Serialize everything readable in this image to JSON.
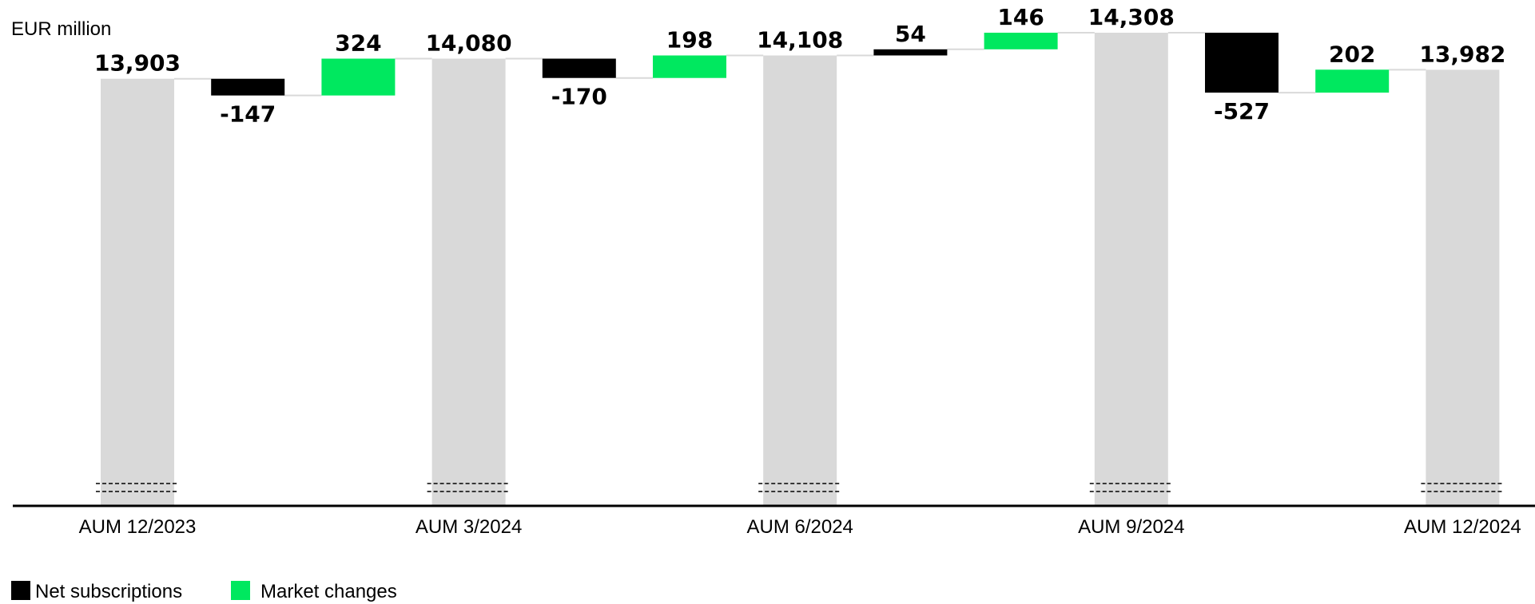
{
  "chart_data": {
    "type": "bar",
    "subtype": "waterfall",
    "unit_label": "EUR million",
    "axis_break": true,
    "grid": false,
    "legend_position": "bottom-left",
    "colors": {
      "total": "#d9d9d9",
      "net_subscriptions": "#000000",
      "market_changes": "#00e85f",
      "connector": "#d9d9d9",
      "axis": "#000000"
    },
    "legend": [
      {
        "key": "net_subscriptions",
        "label": "Net subscriptions"
      },
      {
        "key": "market_changes",
        "label": "Market changes"
      }
    ],
    "bars": [
      {
        "kind": "total",
        "category": "AUM 12/2023",
        "value": 13903,
        "label": "13,903"
      },
      {
        "kind": "net_subscriptions",
        "category": "",
        "value": -147,
        "label": "-147"
      },
      {
        "kind": "market_changes",
        "category": "",
        "value": 324,
        "label": "324"
      },
      {
        "kind": "total",
        "category": "AUM 3/2024",
        "value": 14080,
        "label": "14,080"
      },
      {
        "kind": "net_subscriptions",
        "category": "",
        "value": -170,
        "label": "-170"
      },
      {
        "kind": "market_changes",
        "category": "",
        "value": 198,
        "label": "198"
      },
      {
        "kind": "total",
        "category": "AUM 6/2024",
        "value": 14108,
        "label": "14,108"
      },
      {
        "kind": "net_subscriptions",
        "category": "",
        "value": 54,
        "label": "54"
      },
      {
        "kind": "market_changes",
        "category": "",
        "value": 146,
        "label": "146"
      },
      {
        "kind": "total",
        "category": "AUM 9/2024",
        "value": 14308,
        "label": "14,308"
      },
      {
        "kind": "net_subscriptions",
        "category": "",
        "value": -527,
        "label": "-527"
      },
      {
        "kind": "market_changes",
        "category": "",
        "value": 202,
        "label": "202"
      },
      {
        "kind": "total",
        "category": "AUM 12/2024",
        "value": 13982,
        "label": "13,982"
      }
    ]
  }
}
